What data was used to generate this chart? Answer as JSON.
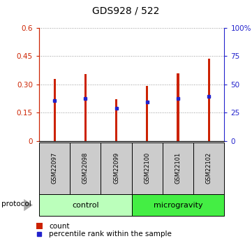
{
  "title": "GDS928 / 522",
  "samples": [
    "GSM22097",
    "GSM22098",
    "GSM22099",
    "GSM22100",
    "GSM22101",
    "GSM22102"
  ],
  "bar_heights": [
    0.33,
    0.355,
    0.22,
    0.29,
    0.36,
    0.435
  ],
  "blue_marker_heights": [
    0.215,
    0.225,
    0.175,
    0.205,
    0.225,
    0.235
  ],
  "bar_color": "#cc2200",
  "blue_color": "#2222cc",
  "ylim": [
    0,
    0.6
  ],
  "yticks_left": [
    0,
    0.15,
    0.3,
    0.45,
    0.6
  ],
  "yticks_left_labels": [
    "0",
    "0.15",
    "0.30",
    "0.45",
    "0.6"
  ],
  "yticks_right": [
    0,
    0.15,
    0.3,
    0.45,
    0.6
  ],
  "yticks_right_labels": [
    "0",
    "25",
    "50",
    "75",
    "100%"
  ],
  "left_axis_color": "#cc2200",
  "right_axis_color": "#2222cc",
  "groups": [
    {
      "label": "control",
      "indices": [
        0,
        1,
        2
      ],
      "color": "#bbffbb"
    },
    {
      "label": "microgravity",
      "indices": [
        3,
        4,
        5
      ],
      "color": "#44ee44"
    }
  ],
  "protocol_label": "protocol",
  "legend_count_label": "count",
  "legend_pct_label": "percentile rank within the sample",
  "grid_linestyle": ":",
  "grid_color": "#999999",
  "bar_width": 0.07,
  "title_fontsize": 10,
  "tick_fontsize": 7.5,
  "sample_fontsize": 6,
  "group_fontsize": 8,
  "legend_fontsize": 7.5
}
